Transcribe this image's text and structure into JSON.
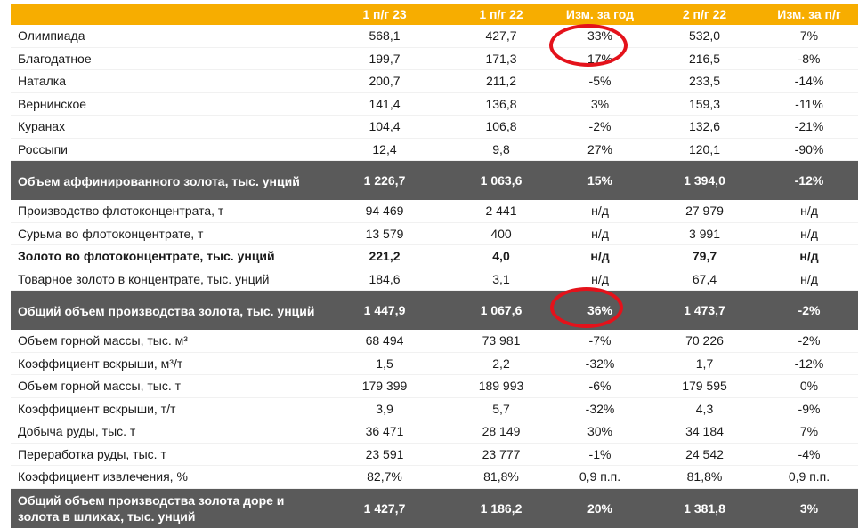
{
  "header": [
    "",
    "1 п/г 23",
    "1 п/г 22",
    "Изм. за год",
    "2 п/г 22",
    "Изм. за п/г"
  ],
  "rows": [
    {
      "label": "Олимпиада",
      "values": [
        "568,1",
        "427,7",
        "33%",
        "532,0",
        "7%"
      ],
      "style": "normal"
    },
    {
      "label": "Благодатное",
      "values": [
        "199,7",
        "171,3",
        "17%",
        "216,5",
        "-8%"
      ],
      "style": "normal"
    },
    {
      "label": "Наталка",
      "values": [
        "200,7",
        "211,2",
        "-5%",
        "233,5",
        "-14%"
      ],
      "style": "normal"
    },
    {
      "label": "Вернинское",
      "values": [
        "141,4",
        "136,8",
        "3%",
        "159,3",
        "-11%"
      ],
      "style": "normal"
    },
    {
      "label": "Куранах",
      "values": [
        "104,4",
        "106,8",
        "-2%",
        "132,6",
        "-21%"
      ],
      "style": "normal"
    },
    {
      "label": "Россыпи",
      "values": [
        "12,4",
        "9,8",
        "27%",
        "120,1",
        "-90%"
      ],
      "style": "normal"
    },
    {
      "label": "Объем аффинированного золота, тыс. унций",
      "values": [
        "1 226,7",
        "1 063,6",
        "15%",
        "1 394,0",
        "-12%"
      ],
      "style": "summary"
    },
    {
      "label": "Производство флотоконцентрата, т",
      "values": [
        "94 469",
        "2 441",
        "н/д",
        "27 979",
        "н/д"
      ],
      "style": "normal"
    },
    {
      "label": "Сурьма во флотоконцентрате, т",
      "values": [
        "13 579",
        "400",
        "н/д",
        "3 991",
        "н/д"
      ],
      "style": "normal"
    },
    {
      "label": "Золото во флотоконцентрате, тыс. унций",
      "values": [
        "221,2",
        "4,0",
        "н/д",
        "79,7",
        "н/д"
      ],
      "style": "bold"
    },
    {
      "label": "Товарное золото в концентрате, тыс. унций",
      "values": [
        "184,6",
        "3,1",
        "н/д",
        "67,4",
        "н/д"
      ],
      "style": "normal"
    },
    {
      "label": "Общий объем производства золота, тыс. унций",
      "values": [
        "1 447,9",
        "1 067,6",
        "36%",
        "1 473,7",
        "-2%"
      ],
      "style": "summary"
    },
    {
      "label": "Объем горной массы, тыс. м³",
      "values": [
        "68 494",
        "73 981",
        "-7%",
        "70 226",
        "-2%"
      ],
      "style": "normal"
    },
    {
      "label": "Коэффициент вскрыши, м³/т",
      "values": [
        "1,5",
        "2,2",
        "-32%",
        "1,7",
        "-12%"
      ],
      "style": "normal"
    },
    {
      "label": "Объем горной массы, тыс. т",
      "values": [
        "179 399",
        "189 993",
        "-6%",
        "179 595",
        "0%"
      ],
      "style": "normal"
    },
    {
      "label": "Коэффициент вскрыши, т/т",
      "values": [
        "3,9",
        "5,7",
        "-32%",
        "4,3",
        "-9%"
      ],
      "style": "normal"
    },
    {
      "label": "Добыча руды, тыс. т",
      "values": [
        "36 471",
        "28 149",
        "30%",
        "34 184",
        "7%"
      ],
      "style": "normal"
    },
    {
      "label": "Переработка руды, тыс. т",
      "values": [
        "23 591",
        "23 777",
        "-1%",
        "24 542",
        "-4%"
      ],
      "style": "normal"
    },
    {
      "label": "Коэффициент извлечения, %",
      "values": [
        "82,7%",
        "81,8%",
        "0,9 п.п.",
        "81,8%",
        "0,9 п.п."
      ],
      "style": "normal"
    },
    {
      "label": "Общий объем производства золота доре и золота в шлихах, тыс. унций",
      "values": [
        "1 427,7",
        "1 186,2",
        "20%",
        "1 381,8",
        "3%"
      ],
      "style": "summary"
    }
  ],
  "colors": {
    "header_bg": "#f7ad00",
    "summary_bg": "#5a5a5a",
    "highlight": "#e4121b"
  }
}
